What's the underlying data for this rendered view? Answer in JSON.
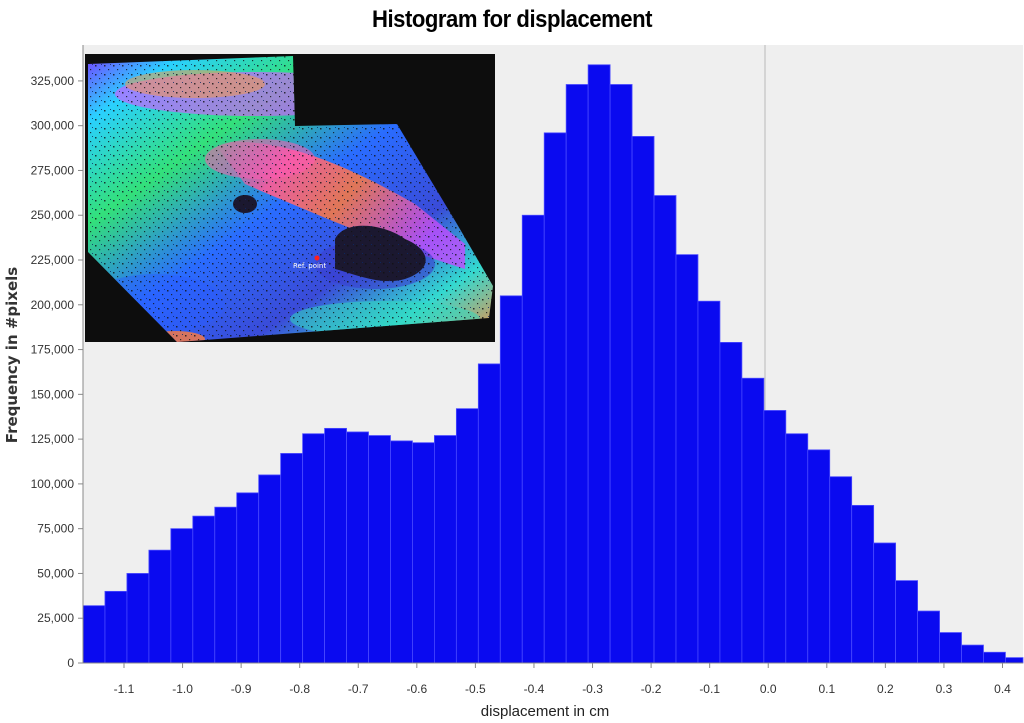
{
  "chart_data": {
    "type": "bar",
    "title": "Histogram for displacement",
    "xlabel": "displacement in cm",
    "ylabel": "Frequency in #pixels",
    "xlim": [
      -1.17,
      0.435
    ],
    "ylim": [
      0,
      335000
    ],
    "grid": "vertical line at 0.0",
    "bin_width": 0.0375,
    "x_ticks": [
      "-1.1",
      "-1.0",
      "-0.9",
      "-0.8",
      "-0.7",
      "-0.6",
      "-0.5",
      "-0.4",
      "-0.3",
      "-0.2",
      "-0.1",
      "0.0",
      "0.1",
      "0.2",
      "0.3",
      "0.4"
    ],
    "x_tick_values": [
      -1.1,
      -1.0,
      -0.9,
      -0.8,
      -0.7,
      -0.6,
      -0.5,
      -0.4,
      -0.3,
      -0.2,
      -0.1,
      0.0,
      0.1,
      0.2,
      0.3,
      0.4
    ],
    "y_ticks": [
      "0",
      "25,000",
      "50,000",
      "75,000",
      "100,000",
      "125,000",
      "150,000",
      "175,000",
      "200,000",
      "225,000",
      "250,000",
      "275,000",
      "300,000",
      "325,000"
    ],
    "y_tick_values": [
      0,
      25000,
      50000,
      75000,
      100000,
      125000,
      150000,
      175000,
      200000,
      225000,
      250000,
      275000,
      300000,
      325000
    ],
    "bins": [
      {
        "x": -1.17,
        "y": 32000
      },
      {
        "x": -1.1325,
        "y": 40000
      },
      {
        "x": -1.095,
        "y": 50000
      },
      {
        "x": -1.0575,
        "y": 63000
      },
      {
        "x": -1.02,
        "y": 75000
      },
      {
        "x": -0.9825,
        "y": 82000
      },
      {
        "x": -0.945,
        "y": 87000
      },
      {
        "x": -0.9075,
        "y": 95000
      },
      {
        "x": -0.87,
        "y": 105000
      },
      {
        "x": -0.8325,
        "y": 117000
      },
      {
        "x": -0.795,
        "y": 128000
      },
      {
        "x": -0.7575,
        "y": 131000
      },
      {
        "x": -0.72,
        "y": 129000
      },
      {
        "x": -0.6825,
        "y": 127000
      },
      {
        "x": -0.645,
        "y": 124000
      },
      {
        "x": -0.6075,
        "y": 123000
      },
      {
        "x": -0.57,
        "y": 127000
      },
      {
        "x": -0.5325,
        "y": 142000
      },
      {
        "x": -0.495,
        "y": 167000
      },
      {
        "x": -0.4575,
        "y": 205000
      },
      {
        "x": -0.42,
        "y": 250000
      },
      {
        "x": -0.3825,
        "y": 296000
      },
      {
        "x": -0.345,
        "y": 323000
      },
      {
        "x": -0.3075,
        "y": 334000
      },
      {
        "x": -0.27,
        "y": 323000
      },
      {
        "x": -0.2325,
        "y": 294000
      },
      {
        "x": -0.195,
        "y": 261000
      },
      {
        "x": -0.1575,
        "y": 228000
      },
      {
        "x": -0.12,
        "y": 202000
      },
      {
        "x": -0.0825,
        "y": 179000
      },
      {
        "x": -0.045,
        "y": 159000
      },
      {
        "x": -0.0075,
        "y": 141000
      },
      {
        "x": 0.03,
        "y": 128000
      },
      {
        "x": 0.0675,
        "y": 119000
      },
      {
        "x": 0.105,
        "y": 104000
      },
      {
        "x": 0.1425,
        "y": 88000
      },
      {
        "x": 0.18,
        "y": 67000
      },
      {
        "x": 0.2175,
        "y": 46000
      },
      {
        "x": 0.255,
        "y": 29000
      },
      {
        "x": 0.2925,
        "y": 17000
      },
      {
        "x": 0.33,
        "y": 10000
      },
      {
        "x": 0.3675,
        "y": 6000
      },
      {
        "x": 0.405,
        "y": 3000
      }
    ],
    "bar_color": "#0a0af0",
    "bar_edge_color": "#4a4aff",
    "plot_background": "#efefef"
  },
  "inset": {
    "marker_label": "Ref. point"
  }
}
